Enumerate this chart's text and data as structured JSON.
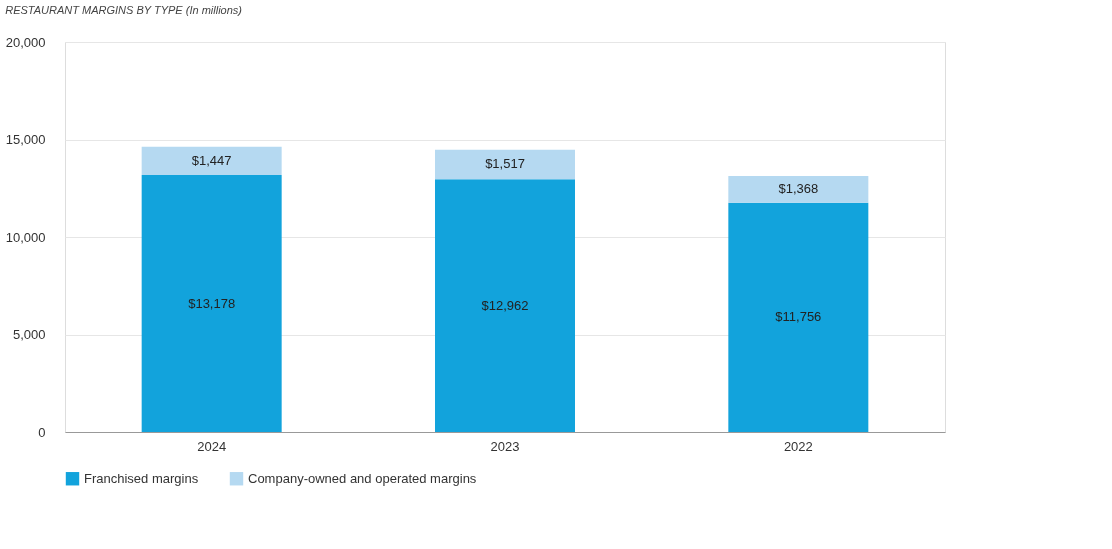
{
  "chart_data": {
    "type": "bar",
    "title": "RESTAURANT MARGINS BY TYPE (In millions)",
    "categories": [
      "2024",
      "2023",
      "2022"
    ],
    "stacked": true,
    "ylim": [
      0,
      20000
    ],
    "yticks": [
      0,
      {
        "value": 5000,
        "label": "5,000"
      },
      {
        "value": 10000,
        "label": "10,000"
      },
      {
        "value": 15000,
        "label": "15,000"
      },
      {
        "value": 20000,
        "label": "20,000"
      }
    ],
    "grid": "y",
    "legend": "bottom",
    "series": [
      {
        "name": "Franchised margins",
        "color": "#12a3dc",
        "values": [
          13178,
          12962,
          11756
        ],
        "value_labels": [
          "$13,178",
          "$12,962",
          "$11,756"
        ]
      },
      {
        "name": "Company-owned and operated margins",
        "color": "#b5d9f1",
        "values": [
          1447,
          1517,
          1368
        ],
        "value_labels": [
          "$1,447",
          "$1,517",
          "$1,368"
        ]
      }
    ]
  }
}
